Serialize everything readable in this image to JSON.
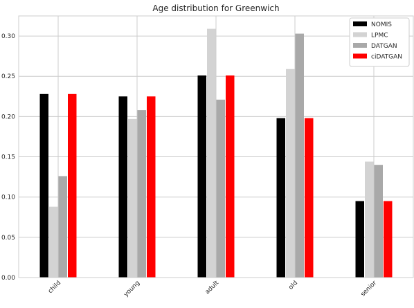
{
  "chart_data": {
    "type": "bar",
    "title": "Age distribution for Greenwich",
    "xlabel": "",
    "ylabel": "",
    "categories": [
      "child",
      "young",
      "adult",
      "old",
      "senior"
    ],
    "series": [
      {
        "name": "NOMIS",
        "color": "#000000",
        "values": [
          0.228,
          0.225,
          0.251,
          0.198,
          0.095
        ]
      },
      {
        "name": "LPMC",
        "color": "#d3d3d3",
        "values": [
          0.088,
          0.197,
          0.309,
          0.259,
          0.144
        ]
      },
      {
        "name": "DATGAN",
        "color": "#a9a9a9",
        "values": [
          0.126,
          0.208,
          0.221,
          0.303,
          0.14
        ]
      },
      {
        "name": "ciDATGAN",
        "color": "#ff0000",
        "values": [
          0.228,
          0.225,
          0.251,
          0.198,
          0.095
        ]
      }
    ],
    "ylim": [
      0,
      0.325
    ],
    "yticks": [
      "0.00",
      "0.05",
      "0.10",
      "0.15",
      "0.20",
      "0.25",
      "0.30"
    ],
    "grid": true,
    "legend_position": "top-right",
    "xtick_rotation": "45deg"
  }
}
